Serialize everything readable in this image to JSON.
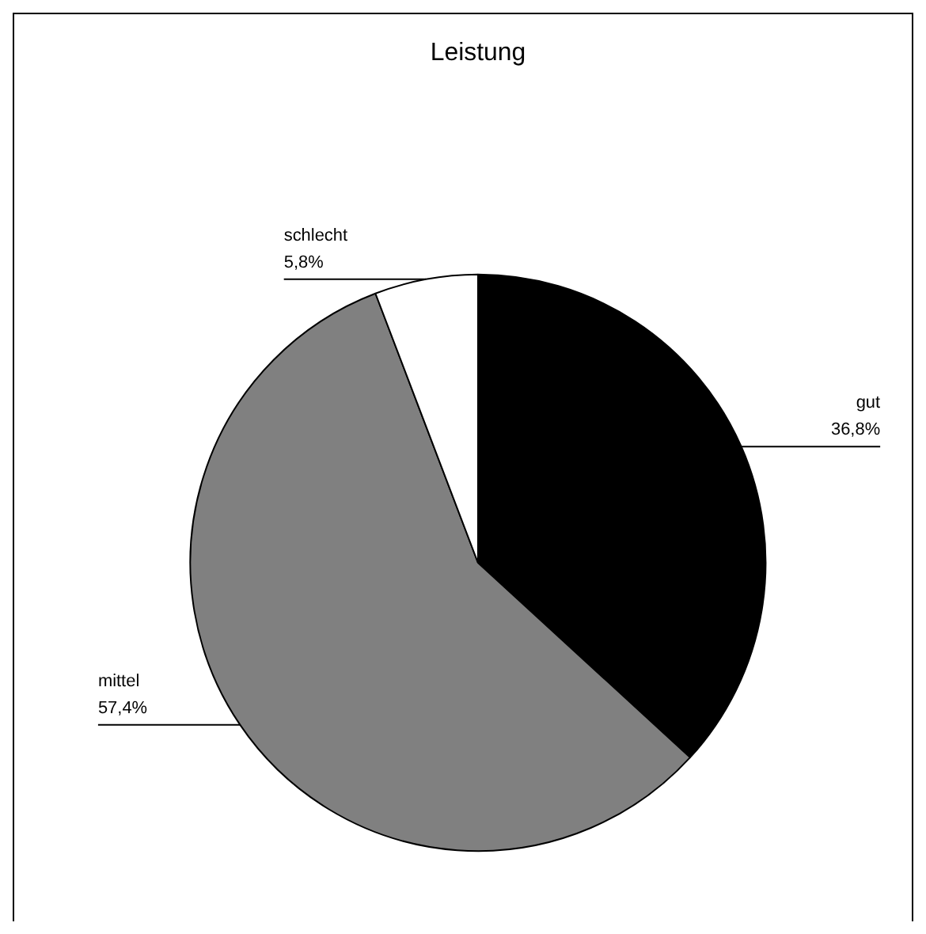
{
  "chart_data": {
    "type": "pie",
    "title": "Leistung",
    "categories": [
      "gut",
      "mittel",
      "schlecht"
    ],
    "values": [
      36.8,
      57.4,
      5.8
    ],
    "colors": [
      "#000000",
      "#808080",
      "#ffffff"
    ],
    "value_labels": [
      "36,8%",
      "57,4%",
      "5,8%"
    ],
    "legend": false
  }
}
